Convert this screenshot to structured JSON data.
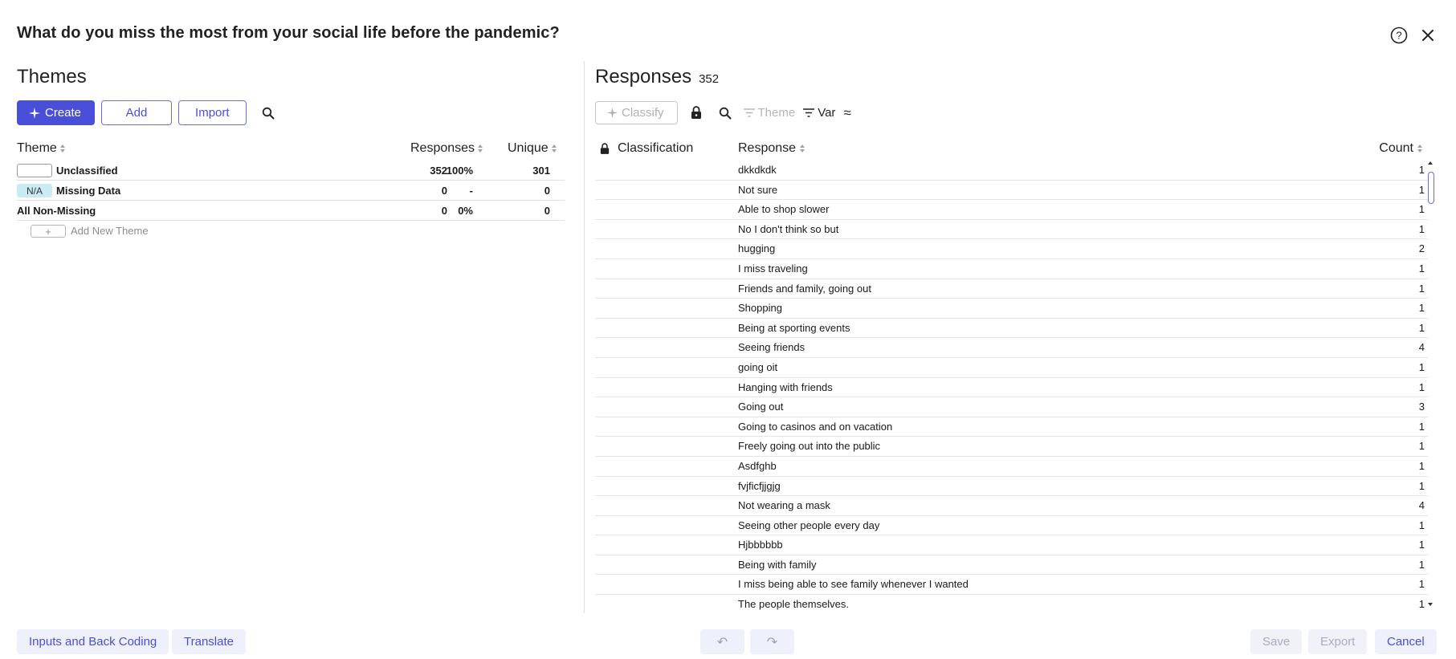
{
  "dialog": {
    "title": "What do you miss the most from your social life before the pandemic?",
    "icons": {
      "help": "help-circle-icon",
      "close": "close-icon"
    }
  },
  "themes": {
    "heading": "Themes",
    "toolbar": {
      "create": "Create",
      "add": "Add",
      "import": "Import"
    },
    "columns": {
      "theme": "Theme",
      "responses": "Responses",
      "unique": "Unique"
    },
    "rows": [
      {
        "swatch": "",
        "name": "Unclassified",
        "responses": "352",
        "percent": "100%",
        "unique": "301"
      },
      {
        "swatch": "N/A",
        "name": "Missing Data",
        "responses": "0",
        "percent": "-",
        "unique": "0"
      },
      {
        "swatch": null,
        "name": "All Non-Missing",
        "responses": "0",
        "percent": "0%",
        "unique": "0"
      }
    ],
    "add_new": {
      "plus": "+",
      "label": "Add New Theme"
    }
  },
  "responses": {
    "heading": "Responses",
    "count": "352",
    "toolbar": {
      "classify": "Classify",
      "theme": "Theme",
      "var": "Var",
      "approx": "≈"
    },
    "columns": {
      "classification": "Classification",
      "response": "Response",
      "count": "Count"
    },
    "rows": [
      {
        "text": "dkkdkdk",
        "count": "1"
      },
      {
        "text": "Not sure",
        "count": "1"
      },
      {
        "text": "Able to shop slower",
        "count": "1"
      },
      {
        "text": "No I don't think so but",
        "count": "1"
      },
      {
        "text": "hugging",
        "count": "2"
      },
      {
        "text": "I miss traveling",
        "count": "1"
      },
      {
        "text": "Friends and family, going out",
        "count": "1"
      },
      {
        "text": "Shopping",
        "count": "1"
      },
      {
        "text": "Being at sporting events",
        "count": "1"
      },
      {
        "text": "Seeing friends",
        "count": "4"
      },
      {
        "text": "going oit",
        "count": "1"
      },
      {
        "text": "Hanging with friends",
        "count": "1"
      },
      {
        "text": "Going out",
        "count": "3"
      },
      {
        "text": "Going to casinos and on vacation",
        "count": "1"
      },
      {
        "text": "Freely going out into the public",
        "count": "1"
      },
      {
        "text": "Asdfghb",
        "count": "1"
      },
      {
        "text": "fvjficfjjgjg",
        "count": "1"
      },
      {
        "text": "Not wearing a mask",
        "count": "4"
      },
      {
        "text": "Seeing other people every day",
        "count": "1"
      },
      {
        "text": "Hjbbbbbb",
        "count": "1"
      },
      {
        "text": "Being with family",
        "count": "1"
      },
      {
        "text": "I miss being able to see family whenever I wanted",
        "count": "1"
      },
      {
        "text": "The people themselves.",
        "count": "1"
      }
    ]
  },
  "footer": {
    "inputs_back_coding": "Inputs and Back Coding",
    "translate": "Translate",
    "undo": "↶",
    "redo": "↷",
    "save": "Save",
    "export": "Export",
    "cancel": "Cancel"
  },
  "colors": {
    "accent": "#4a4fd9",
    "na_badge": "#c9ecf2"
  }
}
